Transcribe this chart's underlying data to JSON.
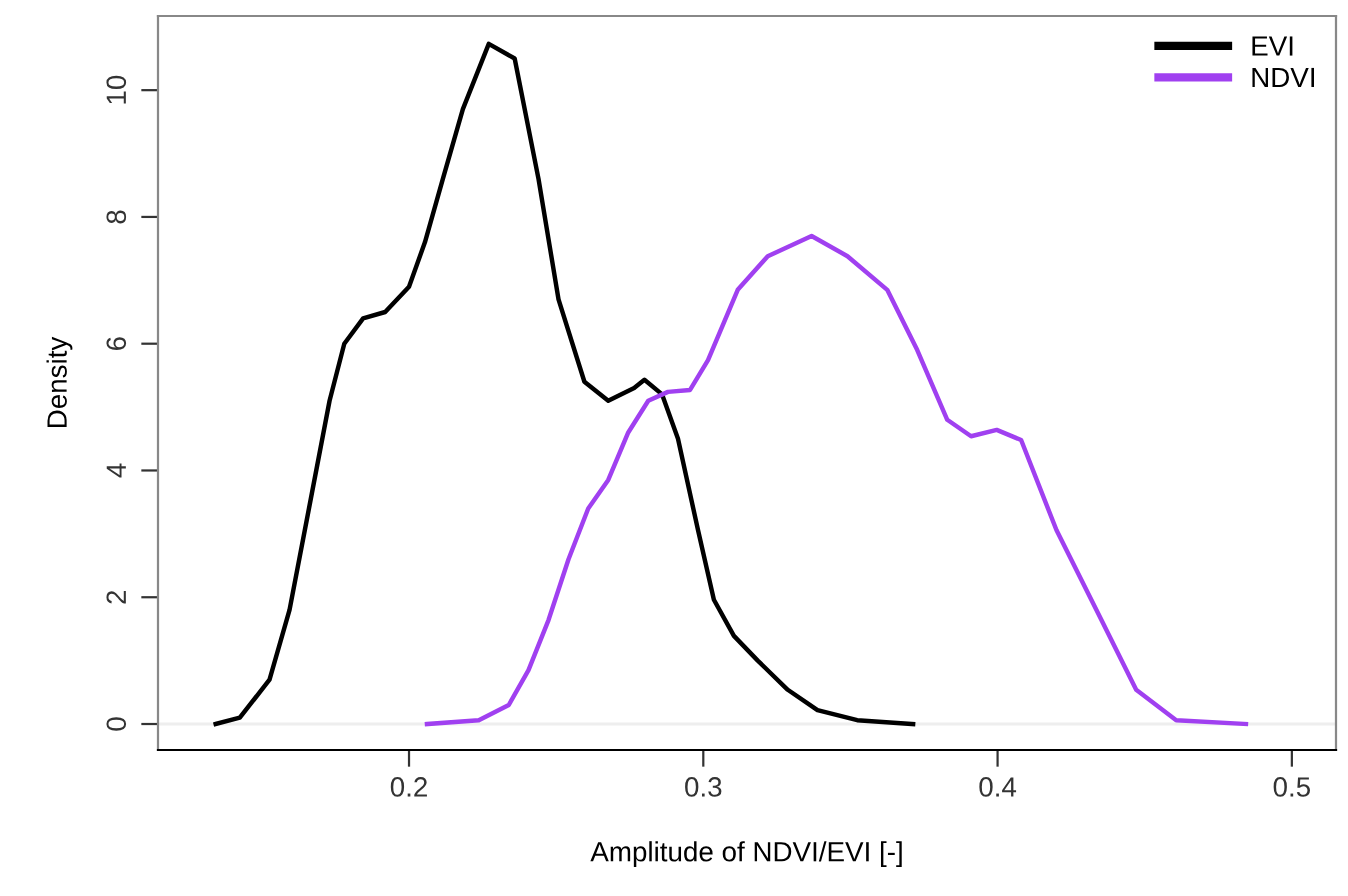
{
  "chart_data": {
    "type": "line",
    "xlabel": "Amplitude of NDVI/EVI [-]",
    "ylabel": "Density",
    "xlim": [
      0.1147,
      0.515
    ],
    "xticks": [
      0.2,
      0.3,
      0.4,
      0.5
    ],
    "ylim": [
      -0.41,
      11.17
    ],
    "yticks": [
      0,
      2,
      4,
      6,
      8,
      10
    ],
    "grid": false,
    "legend": "top right",
    "marker": "none",
    "line_style": "solid",
    "ref_lines": [
      {
        "axis": "y",
        "value": 0,
        "color": "#eeeeee"
      }
    ],
    "series": [
      {
        "name": "EVI",
        "color": "#000000",
        "x": [
          0.1343,
          0.1425,
          0.1526,
          0.1594,
          0.166,
          0.173,
          0.178,
          0.1844,
          0.1919,
          0.2,
          0.2054,
          0.2115,
          0.2183,
          0.2271,
          0.2359,
          0.244,
          0.2508,
          0.2596,
          0.2677,
          0.2765,
          0.28,
          0.286,
          0.2914,
          0.2982,
          0.3036,
          0.3104,
          0.3185,
          0.3287,
          0.3388,
          0.3523,
          0.3713
        ],
        "values": [
          0,
          0.1,
          0.7,
          1.8,
          3.4,
          5.1,
          6.0,
          6.4,
          6.5,
          6.9,
          7.6,
          8.6,
          9.7,
          10.73,
          10.5,
          8.6,
          6.7,
          5.4,
          5.1,
          5.3,
          5.43,
          5.2,
          4.5,
          3.06,
          1.96,
          1.39,
          1.0,
          0.54,
          0.22,
          0.06,
          0
        ]
      },
      {
        "name": "NDVI",
        "color": "#a040f0",
        "x": [
          0.2061,
          0.2237,
          0.2339,
          0.2406,
          0.2474,
          0.2542,
          0.2609,
          0.2677,
          0.2745,
          0.2813,
          0.288,
          0.2955,
          0.3016,
          0.3117,
          0.3219,
          0.3368,
          0.349,
          0.3625,
          0.3727,
          0.3829,
          0.391,
          0.3997,
          0.408,
          0.42,
          0.4336,
          0.4471,
          0.4607,
          0.4844
        ],
        "values": [
          0,
          0.06,
          0.3,
          0.85,
          1.64,
          2.6,
          3.4,
          3.85,
          4.6,
          5.1,
          5.24,
          5.27,
          5.74,
          6.85,
          7.38,
          7.7,
          7.38,
          6.85,
          5.9,
          4.8,
          4.54,
          4.64,
          4.48,
          3.06,
          1.8,
          0.54,
          0.06,
          0
        ]
      }
    ]
  }
}
